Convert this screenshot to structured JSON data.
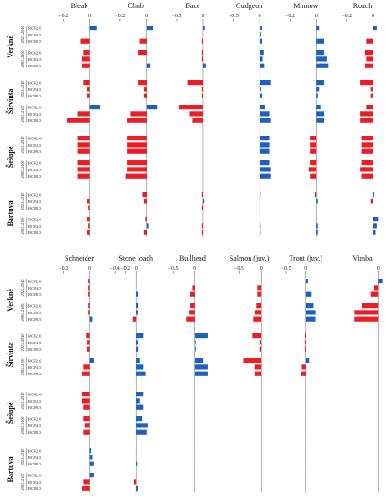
{
  "colors": {
    "negative": "#ee1c24",
    "positive": "#1f5fbf",
    "axis": "#666666"
  },
  "chart_data": [
    {
      "type": "bar",
      "panel": "top",
      "rivers": [
        "Verknė",
        "Širvinta",
        "Šešupė",
        "Bartuva"
      ],
      "periods": [
        "2021–2040",
        "2081–2100"
      ],
      "scenarios": [
        "RCP2.6",
        "RCP4.5",
        "RCP8.5"
      ],
      "species": [
        {
          "name": "Bleak",
          "xticks": [
            -0.2,
            0
          ],
          "xlim": [
            -0.26,
            0.1
          ],
          "values": [
            [
              [
                0.05,
                0,
                -0.07
              ],
              [
                -0.05,
                -0.06,
                -0.06
              ]
            ],
            [
              [
                -0.05,
                -0.02,
                -0.02
              ],
              [
                0.08,
                -0.09,
                -0.17
              ]
            ],
            [
              [
                -0.09,
                -0.09,
                -0.09
              ],
              [
                -0.09,
                -0.09,
                -0.09
              ]
            ],
            [
              [
                0,
                -0.02,
                -0.01
              ],
              [
                -0.02,
                -0.01,
                -0.02
              ]
            ]
          ]
        },
        {
          "name": "Chub",
          "xticks": [
            -0.2,
            0
          ],
          "xlim": [
            -0.26,
            0.1
          ],
          "values": [
            [
              [
                0.05,
                0,
                -0.05
              ],
              [
                -0.06,
                0,
                0.03
              ]
            ],
            [
              [
                -0.06,
                -0.02,
                -0.02
              ],
              [
                0.08,
                -0.12,
                -0.15
              ]
            ],
            [
              [
                -0.15,
                -0.15,
                -0.15
              ],
              [
                -0.15,
                -0.15,
                -0.16
              ]
            ],
            [
              [
                -0.03,
                -0.02,
                0
              ],
              [
                -0.01,
                0.02,
                -0.02
              ]
            ]
          ]
        },
        {
          "name": "Dace",
          "xticks": [
            -0.5,
            0
          ],
          "xlim": [
            -0.65,
            0.25
          ],
          "values": [
            [
              [
                0.03,
                0,
                -0.02
              ],
              [
                -0.02,
                -0.02,
                0.05
              ]
            ],
            [
              [
                -0.3,
                -0.02,
                -0.02
              ],
              [
                -0.45,
                -0.25,
                -0.2
              ]
            ],
            [
              [
                0,
                0,
                0
              ],
              [
                0,
                0,
                0
              ]
            ],
            [
              [
                -0.02,
                0.02,
                -0.02
              ],
              [
                0,
                -0.02,
                -0.02
              ]
            ]
          ]
        },
        {
          "name": "Gudgeon",
          "xticks": [
            -0.5,
            0
          ],
          "xlim": [
            -0.65,
            0.25
          ],
          "values": [
            [
              [
                0.05,
                0.03,
                0.05
              ],
              [
                0.08,
                0.06,
                0.09
              ]
            ],
            [
              [
                0.2,
                0.03,
                0.05
              ],
              [
                0.1,
                0.18,
                0.2
              ]
            ],
            [
              [
                0.18,
                0.18,
                0.18
              ],
              [
                0.18,
                0.2,
                0.2
              ]
            ],
            [
              [
                0.02,
                0.01,
                0
              ],
              [
                0,
                0.02,
                0.02
              ]
            ]
          ]
        },
        {
          "name": "Minnow",
          "xticks": [
            -0.2,
            0
          ],
          "xlim": [
            -0.26,
            0.1
          ],
          "values": [
            [
              [
                0.02,
                0,
                0.06
              ],
              [
                0.06,
                0.08,
                0.09
              ]
            ],
            [
              [
                0.06,
                0.02,
                0.01
              ],
              [
                0.03,
                0.06,
                0.06
              ]
            ],
            [
              [
                -0.05,
                -0.05,
                -0.05
              ],
              [
                -0.05,
                -0.06,
                -0.05
              ]
            ],
            [
              [
                -0.01,
                0.01,
                0
              ],
              [
                0,
                0.01,
                0.01
              ]
            ]
          ]
        },
        {
          "name": "Roach",
          "xticks": [
            -0.2,
            0
          ],
          "xlim": [
            -0.26,
            0.1
          ],
          "values": [
            [
              [
                0.03,
                0,
                -0.05
              ],
              [
                -0.06,
                -0.05,
                -0.06
              ]
            ],
            [
              [
                -0.1,
                -0.02,
                -0.02
              ],
              [
                -0.05,
                -0.1,
                -0.1
              ]
            ],
            [
              [
                -0.09,
                -0.09,
                -0.09
              ],
              [
                -0.09,
                -0.1,
                -0.09
              ]
            ],
            [
              [
                0.01,
                -0.02,
                0
              ],
              [
                0.04,
                0.03,
                0.02
              ]
            ]
          ]
        }
      ]
    },
    {
      "type": "bar",
      "panel": "bottom",
      "rivers": [
        "Verknė",
        "Širvinta",
        "Šešupė",
        "Bartuva"
      ],
      "periods": [
        "2021–2040",
        "2081–2100"
      ],
      "scenarios": [
        "RCP2.6",
        "RCP4.5",
        "RCP8.5"
      ],
      "species": [
        {
          "name": "Schneider",
          "xticks": [
            -0.2,
            0
          ],
          "xlim": [
            -0.26,
            0.1
          ],
          "values": [
            [
              [
                -0.01,
                -0.01,
                -0.01
              ],
              [
                -0.01,
                -0.01,
                0.02
              ]
            ],
            [
              [
                -0.03,
                -0.02,
                -0.02
              ],
              [
                0.03,
                -0.05,
                -0.06
              ]
            ],
            [
              [
                -0.06,
                -0.06,
                -0.05
              ],
              [
                -0.05,
                -0.04,
                -0.05
              ]
            ],
            [
              [
                0.01,
                0.02,
                0.03
              ],
              [
                0.03,
                -0.05,
                -0.06
              ]
            ]
          ]
        },
        {
          "name": "Stone loach",
          "xticks": [
            -0.4,
            -0.2,
            0
          ],
          "xlim": [
            -0.45,
            0.45
          ],
          "values": [
            [
              [
                0,
                0,
                0.05
              ],
              [
                0.05,
                0.03,
                -0.06
              ]
            ],
            [
              [
                0.14,
                0.05,
                0.05
              ],
              [
                0.08,
                0.14,
                0.18
              ]
            ],
            [
              [
                0.14,
                0.08,
                0.14
              ],
              [
                0.12,
                0.22,
                0.2
              ]
            ],
            [
              [
                0,
                0,
                0.02
              ],
              [
                0,
                -0.04,
                0.04
              ]
            ]
          ]
        },
        {
          "name": "Bullhead",
          "xticks": [
            -0.5,
            0
          ],
          "xlim": [
            -0.6,
            0.5
          ],
          "values": [
            [
              [
                0,
                -0.05,
                -0.1
              ],
              [
                -0.1,
                -0.12,
                -0.2
              ]
            ],
            [
              [
                0.3,
                0.02,
                0.02
              ],
              [
                0.2,
                0.3,
                0.3
              ]
            ],
            [
              [
                0,
                0,
                0
              ],
              [
                0,
                0,
                0
              ]
            ],
            [
              [
                0,
                0,
                0
              ],
              [
                0,
                0,
                0
              ]
            ]
          ]
        },
        {
          "name": "Salmon (juv.)",
          "xticks": [
            -0.5,
            0
          ],
          "xlim": [
            -0.8,
            0.25
          ],
          "values": [
            [
              [
                0,
                -0.1,
                -0.1
              ],
              [
                -0.12,
                -0.15,
                -0.18
              ]
            ],
            [
              [
                -0.2,
                -0.05,
                -0.05
              ],
              [
                -0.4,
                -0.15,
                -0.15
              ]
            ],
            [
              [
                0,
                0,
                0
              ],
              [
                0,
                0,
                0
              ]
            ],
            [
              [
                0,
                0,
                0
              ],
              [
                0,
                0,
                0
              ]
            ]
          ]
        },
        {
          "name": "Trout (juv.)",
          "xticks": [
            -0.5,
            0
          ],
          "xlim": [
            -0.6,
            0.6
          ],
          "values": [
            [
              [
                0.05,
                0,
                0.15
              ],
              [
                0.2,
                0.25,
                0.25
              ]
            ],
            [
              [
                -0.02,
                -0.02,
                -0.02
              ],
              [
                0.08,
                -0.1,
                -0.12
              ]
            ],
            [
              [
                0,
                0,
                0
              ],
              [
                0,
                0,
                0
              ]
            ],
            [
              [
                0,
                0,
                0
              ],
              [
                0,
                0,
                0
              ]
            ]
          ]
        },
        {
          "name": "Vimba",
          "xticks": [
            0
          ],
          "xlim": [
            -0.5,
            0.1
          ],
          "values": [
            [
              [
                0.05,
                -0.05,
                -0.1
              ],
              [
                -0.2,
                -0.3,
                -0.3
              ]
            ],
            [
              [
                0,
                0,
                0
              ],
              [
                0,
                0,
                0
              ]
            ],
            [
              [
                0,
                0,
                0
              ],
              [
                0,
                0,
                0
              ]
            ],
            [
              [
                0,
                0,
                0
              ],
              [
                0,
                0,
                0
              ]
            ]
          ]
        }
      ]
    }
  ]
}
